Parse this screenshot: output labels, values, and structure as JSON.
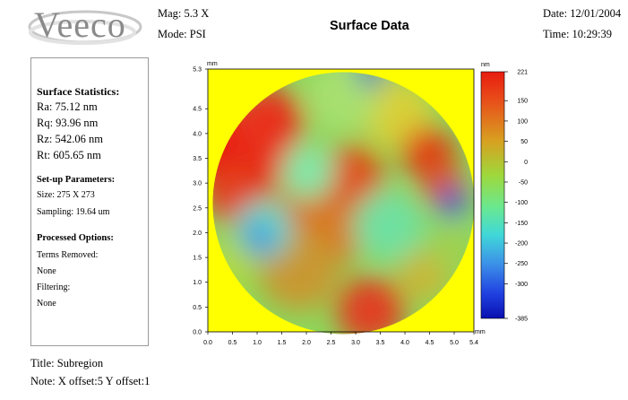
{
  "header": {
    "logo_text": "Veeco",
    "mag_label": "Mag:",
    "mag_value": "5.3 X",
    "mode_label": "Mode:",
    "mode_value": "PSI",
    "title": "Surface Data",
    "date_label": "Date:",
    "date_value": "12/01/2004",
    "time_label": "Time:",
    "time_value": "10:29:39"
  },
  "stats": {
    "surface_heading": "Surface Statistics:",
    "ra": "Ra:  75.12 nm",
    "rq": "Rq:  93.96 nm",
    "rz": "Rz:  542.06 nm",
    "rt": "Rt:  605.65 nm",
    "setup_heading": "Set-up Parameters:",
    "size": "Size: 275 X 273",
    "sampling": "Sampling: 19.64 um",
    "processed_heading": "Processed Options:",
    "terms_removed": "Terms Removed:",
    "terms_value": "None",
    "filtering": "Filtering:",
    "filtering_value": "None"
  },
  "chart_data": {
    "type": "heatmap",
    "title": "Surface Data",
    "x_unit": "mm",
    "y_unit": "mm",
    "xlim": [
      0,
      5.4
    ],
    "ylim": [
      0,
      5.3
    ],
    "x_ticks": [
      "0.0",
      "0.5",
      "1.0",
      "1.5",
      "2.0",
      "2.5",
      "3.0",
      "3.5",
      "4.0",
      "4.5",
      "5.0",
      "5.4"
    ],
    "y_ticks": [
      "5.3",
      "4.5",
      "4.0",
      "3.5",
      "3.0",
      "2.5",
      "2.0",
      "1.5",
      "1.0",
      "0.5",
      "0.0"
    ],
    "x_tick_values": [
      0,
      0.5,
      1.0,
      1.5,
      2.0,
      2.5,
      3.0,
      3.5,
      4.0,
      4.5,
      5.0,
      5.4
    ],
    "y_tick_values": [
      5.3,
      4.5,
      4.0,
      3.5,
      3.0,
      2.5,
      2.0,
      1.5,
      1.0,
      0.5,
      0.0
    ],
    "colorbar_unit": "nm",
    "colorbar_ticks": [
      "221",
      "150",
      "100",
      "50",
      "0",
      "-50",
      "-100",
      "-150",
      "-200",
      "-250",
      "-300",
      "-385"
    ],
    "colorbar_values": [
      221,
      150,
      100,
      50,
      0,
      -50,
      -100,
      -150,
      -200,
      -250,
      -300,
      -385
    ],
    "colorbar_range": [
      -385,
      221
    ],
    "colors": {
      "background": "#ffff00",
      "high": "#e81c10",
      "mid": "#7ed85a",
      "low": "#0a18c0"
    }
  },
  "footer": {
    "title": "Title:  Subregion",
    "note": "Note:  X offset:5   Y offset:1"
  }
}
